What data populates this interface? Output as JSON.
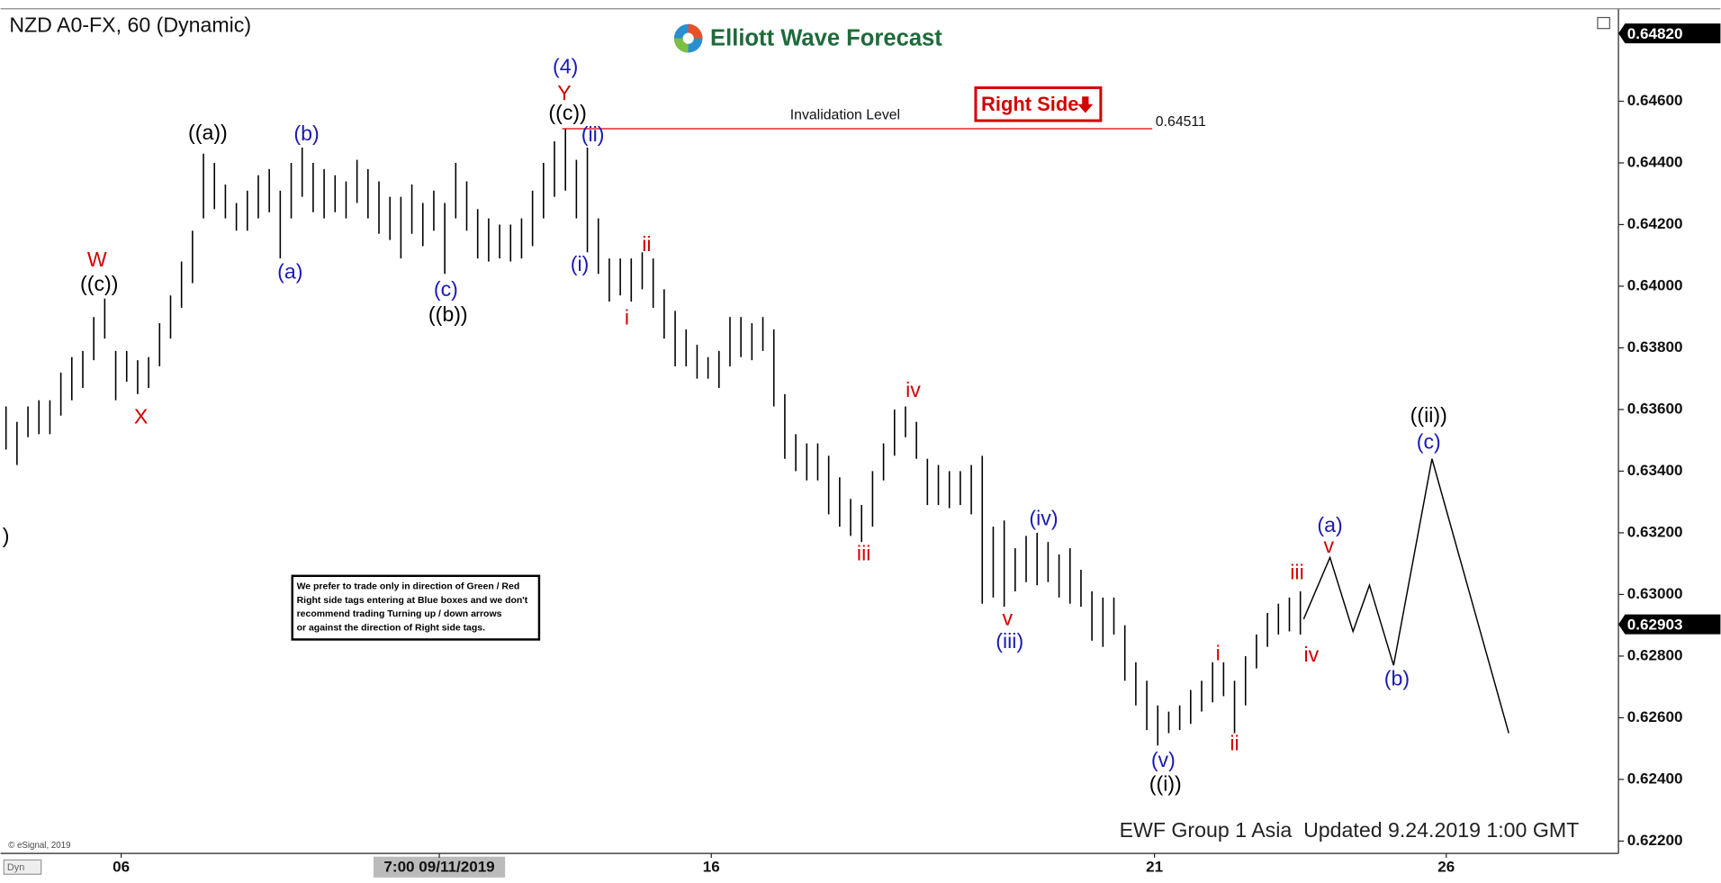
{
  "chart_data": {
    "type": "ohlc",
    "title": "NZD A0-FX, 60 (Dynamic)",
    "brand": "Elliott Wave Forecast",
    "tag": "Right Side",
    "footer": "EWF Group 1 Asia  Updated 9.24.2019 1:00 GMT",
    "source": "© eSignal, 2019",
    "corner": "Dyn",
    "note": [
      "We prefer to trade only in direction of Green / Red",
      "Right side tags entering at Blue boxes and we don't",
      "recommend trading Turning up / down arrows",
      "or against the direction of Right side tags."
    ],
    "color": "#000000",
    "xlim": [
      -0.5,
      147
    ],
    "ylim": [
      0.6216,
      0.649
    ],
    "xticks": [
      {
        "value": 10.5,
        "label": "06"
      },
      {
        "value": 39.5,
        "label": "7:00 09/11/2019"
      },
      {
        "value": 64.3,
        "label": "16"
      },
      {
        "value": 104.7,
        "label": "21"
      },
      {
        "value": 131.3,
        "label": "26"
      }
    ],
    "yticks": [
      {
        "value": 0.622,
        "label": "0.62200"
      },
      {
        "value": 0.624,
        "label": "0.62400"
      },
      {
        "value": 0.626,
        "label": "0.62600"
      },
      {
        "value": 0.628,
        "label": "0.62800"
      },
      {
        "value": 0.63,
        "label": "0.63000"
      },
      {
        "value": 0.632,
        "label": "0.63200"
      },
      {
        "value": 0.634,
        "label": "0.63400"
      },
      {
        "value": 0.636,
        "label": "0.63600"
      },
      {
        "value": 0.638,
        "label": "0.63800"
      },
      {
        "value": 0.64,
        "label": "0.64000"
      },
      {
        "value": 0.642,
        "label": "0.64200"
      },
      {
        "value": 0.644,
        "label": "0.64400"
      },
      {
        "value": 0.646,
        "label": "0.64600"
      }
    ],
    "price_markers": [
      {
        "value": 0.6482,
        "label": "0.64820"
      },
      0.62903
    ],
    "x": [
      0,
      1,
      2,
      3,
      4,
      5,
      6,
      7,
      8,
      9,
      10,
      11,
      12,
      13,
      14,
      15,
      16,
      17,
      18,
      19,
      20,
      21,
      22,
      23,
      24,
      25,
      26,
      27,
      28,
      29,
      30,
      31,
      32,
      33,
      34,
      35,
      36,
      37,
      38,
      39,
      40,
      41,
      42,
      43,
      44,
      45,
      46,
      47,
      48,
      49,
      50,
      51,
      52,
      53,
      54,
      55,
      56,
      57,
      58,
      59,
      60,
      61,
      62,
      63,
      64,
      65,
      66,
      67,
      68,
      69,
      70,
      71,
      72,
      73,
      74,
      75,
      76,
      77,
      78,
      79,
      80,
      81,
      82,
      83,
      84,
      85,
      86,
      87,
      88,
      89,
      90,
      91,
      92,
      93,
      94,
      95,
      96,
      97,
      98,
      99,
      100,
      101,
      102,
      103,
      104,
      105,
      106,
      107,
      108,
      109,
      110,
      111,
      112,
      113,
      114,
      115,
      116,
      117,
      118
    ],
    "high": [
      0.6361,
      0.6356,
      0.6361,
      0.6363,
      0.6363,
      0.6372,
      0.6377,
      0.6379,
      0.639,
      0.6396,
      0.6379,
      0.6379,
      0.6376,
      0.6377,
      0.6388,
      0.6397,
      0.6408,
      0.6418,
      0.6443,
      0.644,
      0.6433,
      0.6427,
      0.6431,
      0.6436,
      0.6438,
      0.6431,
      0.644,
      0.6445,
      0.644,
      0.6438,
      0.6436,
      0.6434,
      0.6441,
      0.6438,
      0.6434,
      0.6429,
      0.6429,
      0.6433,
      0.6427,
      0.6431,
      0.6427,
      0.644,
      0.6434,
      0.6425,
      0.6422,
      0.642,
      0.642,
      0.6422,
      0.6431,
      0.644,
      0.6447,
      0.6451,
      0.6441,
      0.6445,
      0.6422,
      0.6409,
      0.6409,
      0.6409,
      0.6411,
      0.6409,
      0.6399,
      0.6392,
      0.6386,
      0.6381,
      0.6377,
      0.6379,
      0.639,
      0.639,
      0.6388,
      0.639,
      0.6386,
      0.6365,
      0.6352,
      0.6349,
      0.6349,
      0.6345,
      0.6338,
      0.6331,
      0.6329,
      0.634,
      0.6349,
      0.636,
      0.6361,
      0.6356,
      0.6344,
      0.6342,
      0.634,
      0.634,
      0.6342,
      0.6345,
      0.6322,
      0.6324,
      0.6315,
      0.6319,
      0.632,
      0.6317,
      0.6313,
      0.6315,
      0.6308,
      0.6301,
      0.6299,
      0.6299,
      0.629,
      0.6278,
      0.6272,
      0.6264,
      0.6262,
      0.6264,
      0.6269,
      0.6272,
      0.6278,
      0.6278,
      0.6272,
      0.628,
      0.6287,
      0.6294,
      0.6297,
      0.6299,
      0.6301
    ],
    "low": [
      0.6347,
      0.6342,
      0.6351,
      0.6352,
      0.6352,
      0.6358,
      0.6363,
      0.6367,
      0.6376,
      0.6383,
      0.6363,
      0.6369,
      0.6365,
      0.6367,
      0.6374,
      0.6383,
      0.6393,
      0.6401,
      0.6422,
      0.6425,
      0.6422,
      0.6418,
      0.6418,
      0.6422,
      0.6424,
      0.6409,
      0.6422,
      0.6429,
      0.6424,
      0.6422,
      0.6424,
      0.6422,
      0.6427,
      0.6422,
      0.6417,
      0.6415,
      0.6409,
      0.6417,
      0.6413,
      0.6418,
      0.6404,
      0.6422,
      0.6418,
      0.6409,
      0.6408,
      0.6409,
      0.6408,
      0.6409,
      0.6413,
      0.6422,
      0.6429,
      0.6431,
      0.6422,
      0.6411,
      0.6404,
      0.6395,
      0.6397,
      0.6395,
      0.6399,
      0.6393,
      0.6383,
      0.6374,
      0.6374,
      0.637,
      0.637,
      0.6367,
      0.6374,
      0.6377,
      0.6376,
      0.6379,
      0.6361,
      0.6344,
      0.634,
      0.6337,
      0.6337,
      0.6326,
      0.6322,
      0.6319,
      0.6317,
      0.6322,
      0.6337,
      0.6345,
      0.6351,
      0.6344,
      0.6329,
      0.6329,
      0.6328,
      0.6329,
      0.6326,
      0.6297,
      0.6299,
      0.6296,
      0.6301,
      0.6304,
      0.6303,
      0.6304,
      0.6299,
      0.6297,
      0.6296,
      0.6285,
      0.6283,
      0.6287,
      0.6272,
      0.6264,
      0.6256,
      0.6251,
      0.6255,
      0.6256,
      0.6258,
      0.6262,
      0.6265,
      0.6267,
      0.6255,
      0.6264,
      0.6276,
      0.6283,
      0.6287,
      0.6288,
      0.6287
    ],
    "projection": {
      "color": "#000000",
      "x": [
        118.3,
        120.7,
        122.8,
        124.3,
        126.5,
        130,
        137
      ],
      "y": [
        0.6292,
        0.6312,
        0.6288,
        0.6303,
        0.6277,
        0.6344,
        0.6255
      ]
    },
    "invalidation": {
      "label": "Invalidation Level",
      "value": 0.64511,
      "color": "#d40000",
      "x": [
        50.7,
        104.5
      ]
    },
    "annotations": [
      {
        "text": "W",
        "color": "#d40000"
      },
      {
        "text": "((c))",
        "color": "#000000"
      },
      {
        "text": "X",
        "color": "#d40000"
      },
      {
        "text": "((a))",
        "color": "#000000"
      },
      {
        "text": "(b)",
        "color": "#1a1ab4"
      },
      {
        "text": "(a)",
        "color": "#1a1ab4"
      },
      {
        "text": "(c)",
        "color": "#1a1ab4"
      },
      {
        "text": "((b))",
        "color": "#000000"
      },
      {
        "text": "(4)",
        "color": "#1a1ab4"
      },
      {
        "text": "Y",
        "color": "#d40000"
      },
      {
        "text": "((c))",
        "color": "#000000"
      },
      {
        "text": "(ii)",
        "color": "#1a1ab4"
      },
      {
        "text": "(i)",
        "color": "#1a1ab4"
      },
      {
        "text": "ii",
        "color": "#d40000"
      },
      {
        "text": "i",
        "color": "#d40000"
      },
      {
        "text": "iv",
        "color": "#d40000"
      },
      {
        "text": "iii",
        "color": "#d40000"
      },
      {
        "text": "(iv)",
        "color": "#1a1ab4"
      },
      {
        "text": "v",
        "color": "#d40000"
      },
      {
        "text": "(iii)",
        "color": "#1a1ab4"
      },
      {
        "text": "(v)",
        "color": "#1a1ab4"
      },
      {
        "text": "((i))",
        "color": "#000000"
      },
      {
        "text": "i",
        "color": "#d40000"
      },
      {
        "text": "ii",
        "color": "#d40000"
      },
      {
        "text": "iii",
        "color": "#d40000"
      },
      {
        "text": "iv",
        "color": "#d40000"
      },
      {
        "text": "(a)",
        "color": "#1a1ab4"
      },
      {
        "text": "v",
        "color": "#d40000"
      },
      {
        "text": "(b)",
        "color": "#1a1ab4"
      },
      {
        "text": "((ii))",
        "color": "#000000"
      },
      {
        "text": "(c)",
        "color": "#1a1ab4"
      },
      {
        "text": ")",
        "color": "#000000"
      }
    ]
  }
}
